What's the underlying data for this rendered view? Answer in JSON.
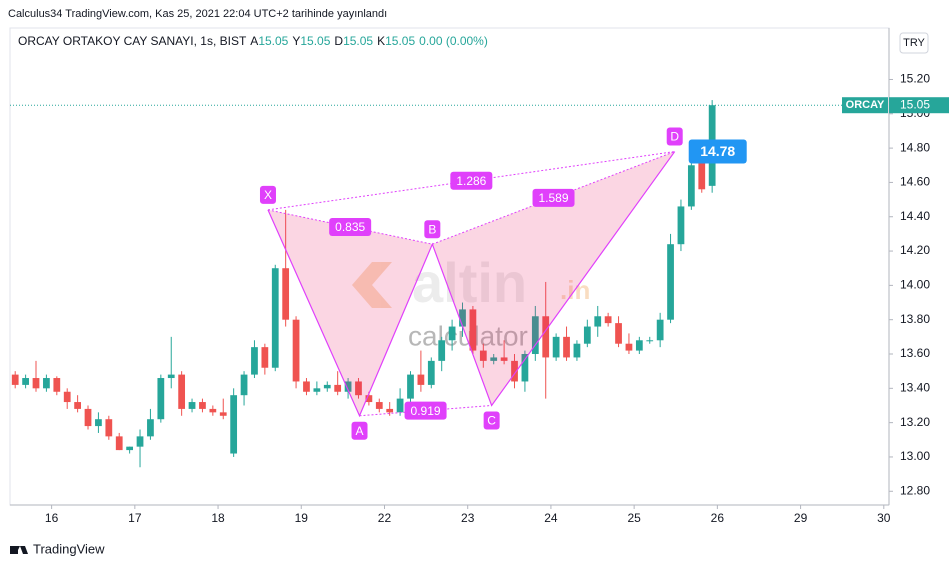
{
  "header": "Calculus34 TradingView.com, Kas 25, 2021 22:04 UTC+2 tarihinde yayınlandı",
  "footer": "TradingView",
  "currency_button": "TRY",
  "watermark": {
    "brand": "altin",
    "suffix": ".in",
    "sub": "calculator"
  },
  "chart_data": {
    "type": "candlestick",
    "legend": {
      "symbol": "ORCAY ORTAKOY CAY SANAYI, 1s, BIST",
      "fields": [
        {
          "key": "A",
          "text": "15.05"
        },
        {
          "key": "Y",
          "text": "15.05"
        },
        {
          "key": "D",
          "text": "15.05"
        },
        {
          "key": "K",
          "text": "15.05"
        }
      ],
      "change": "0.00 (0.00%)"
    },
    "up_color": "#26a69a",
    "down_color": "#ef5350",
    "open": [
      13.48,
      13.42,
      13.46,
      13.4,
      13.46,
      13.38,
      13.32,
      13.28,
      13.18,
      13.22,
      13.12,
      13.04,
      13.06,
      13.12,
      13.22,
      13.46,
      13.48,
      13.28,
      13.32,
      13.28,
      13.26,
      13.02,
      13.36,
      13.48,
      13.64,
      13.52,
      14.1,
      13.8,
      13.44,
      13.38,
      13.4,
      13.42,
      13.38,
      13.44,
      13.36,
      13.32,
      13.28,
      13.26,
      13.34,
      13.48,
      13.42,
      13.56,
      13.68,
      13.76,
      13.86,
      13.62,
      13.56,
      13.58,
      13.56,
      13.44,
      13.6,
      13.82,
      13.58,
      13.7,
      13.58,
      13.66,
      13.76,
      13.82,
      13.78,
      13.66,
      13.62,
      13.68,
      13.68,
      13.8,
      14.24,
      14.46,
      14.74,
      14.58
    ],
    "high": [
      13.5,
      13.48,
      13.56,
      13.48,
      13.47,
      13.4,
      13.36,
      13.3,
      13.26,
      13.24,
      13.14,
      13.06,
      13.16,
      13.28,
      13.48,
      13.7,
      13.5,
      13.34,
      13.34,
      13.3,
      13.34,
      13.4,
      13.5,
      13.68,
      13.66,
      14.12,
      14.44,
      13.82,
      13.46,
      13.44,
      13.44,
      13.5,
      13.46,
      13.46,
      13.38,
      13.34,
      13.32,
      13.4,
      13.5,
      13.62,
      13.58,
      13.7,
      13.8,
      13.9,
      13.88,
      13.66,
      13.6,
      13.68,
      13.6,
      13.62,
      13.88,
      14.02,
      13.72,
      13.76,
      13.68,
      13.8,
      13.88,
      13.84,
      13.82,
      13.72,
      13.7,
      13.7,
      13.84,
      14.3,
      14.5,
      14.8,
      14.84,
      15.08
    ],
    "low": [
      13.4,
      13.4,
      13.38,
      13.38,
      13.36,
      13.28,
      13.26,
      13.16,
      13.14,
      13.1,
      13.04,
      13.02,
      12.94,
      13.1,
      13.2,
      13.4,
      13.24,
      13.26,
      13.26,
      13.24,
      13.22,
      13.0,
      13.3,
      13.46,
      13.48,
      13.5,
      13.76,
      13.4,
      13.36,
      13.36,
      13.38,
      13.36,
      13.34,
      13.34,
      13.3,
      13.26,
      13.24,
      13.24,
      13.32,
      13.38,
      13.4,
      13.5,
      13.62,
      13.7,
      13.6,
      13.52,
      13.54,
      13.54,
      13.4,
      13.38,
      13.56,
      13.34,
      13.56,
      13.56,
      13.56,
      13.64,
      13.7,
      13.76,
      13.64,
      13.6,
      13.6,
      13.66,
      13.64,
      13.78,
      14.2,
      14.44,
      14.54,
      14.54
    ],
    "close": [
      13.42,
      13.46,
      13.4,
      13.46,
      13.38,
      13.32,
      13.28,
      13.18,
      13.22,
      13.12,
      13.04,
      13.06,
      13.12,
      13.22,
      13.46,
      13.48,
      13.28,
      13.32,
      13.28,
      13.26,
      13.24,
      13.36,
      13.48,
      13.64,
      13.52,
      14.1,
      13.8,
      13.44,
      13.38,
      13.4,
      13.42,
      13.38,
      13.44,
      13.36,
      13.32,
      13.28,
      13.26,
      13.34,
      13.48,
      13.42,
      13.56,
      13.68,
      13.76,
      13.86,
      13.62,
      13.56,
      13.58,
      13.56,
      13.44,
      13.6,
      13.82,
      13.58,
      13.7,
      13.58,
      13.66,
      13.76,
      13.82,
      13.78,
      13.66,
      13.62,
      13.68,
      13.68,
      13.8,
      14.24,
      14.46,
      14.7,
      14.56,
      15.05
    ],
    "xlim": [
      0,
      84.5
    ],
    "xticks": [
      {
        "value": 4,
        "label": "16"
      },
      {
        "value": 12,
        "label": "17"
      },
      {
        "value": 20,
        "label": "18"
      },
      {
        "value": 28,
        "label": "19"
      },
      {
        "value": 36,
        "label": "22"
      },
      {
        "value": 44,
        "label": "23"
      },
      {
        "value": 52,
        "label": "24"
      },
      {
        "value": 60,
        "label": "25"
      },
      {
        "value": 68,
        "label": "26"
      },
      {
        "value": 76,
        "label": "29"
      },
      {
        "value": 84,
        "label": "30"
      }
    ],
    "ylim": [
      12.72,
      15.5
    ],
    "yticks": [
      {
        "value": 12.8,
        "label": "12.80"
      },
      {
        "value": 13,
        "label": "13.00"
      },
      {
        "value": 13.2,
        "label": "13.20"
      },
      {
        "value": 13.4,
        "label": "13.40"
      },
      {
        "value": 13.6,
        "label": "13.60"
      },
      {
        "value": 13.8,
        "label": "13.80"
      },
      {
        "value": 14,
        "label": "14.00"
      },
      {
        "value": 14.2,
        "label": "14.20"
      },
      {
        "value": 14.4,
        "label": "14.40"
      },
      {
        "value": 14.6,
        "label": "14.60"
      },
      {
        "value": 14.8,
        "label": "14.80"
      },
      {
        "value": 15,
        "label": "15.00"
      },
      {
        "value": 15.2,
        "label": "15.20"
      }
    ],
    "last_price": {
      "name": "ORCAY",
      "value": 15.05,
      "label": "15.05",
      "color": "#26a69a"
    },
    "pattern": {
      "color": "#e040fb",
      "points": [
        {
          "label": "X",
          "x": 24.8,
          "y": 14.44
        },
        {
          "label": "A",
          "x": 33.6,
          "y": 13.24
        },
        {
          "label": "B",
          "x": 40.6,
          "y": 14.24
        },
        {
          "label": "C",
          "x": 46.3,
          "y": 13.3
        },
        {
          "label": "D",
          "x": 63.9,
          "y": 14.78
        }
      ],
      "ratios": [
        {
          "text": "0.835",
          "from": "X",
          "to": "B"
        },
        {
          "text": "1.286",
          "from": "X",
          "to": "D"
        },
        {
          "text": "1.589",
          "from": "B",
          "to": "D"
        },
        {
          "text": "0.919",
          "from": "A",
          "to": "C"
        }
      ],
      "target": {
        "value": 14.78,
        "label": "14.78"
      }
    }
  }
}
